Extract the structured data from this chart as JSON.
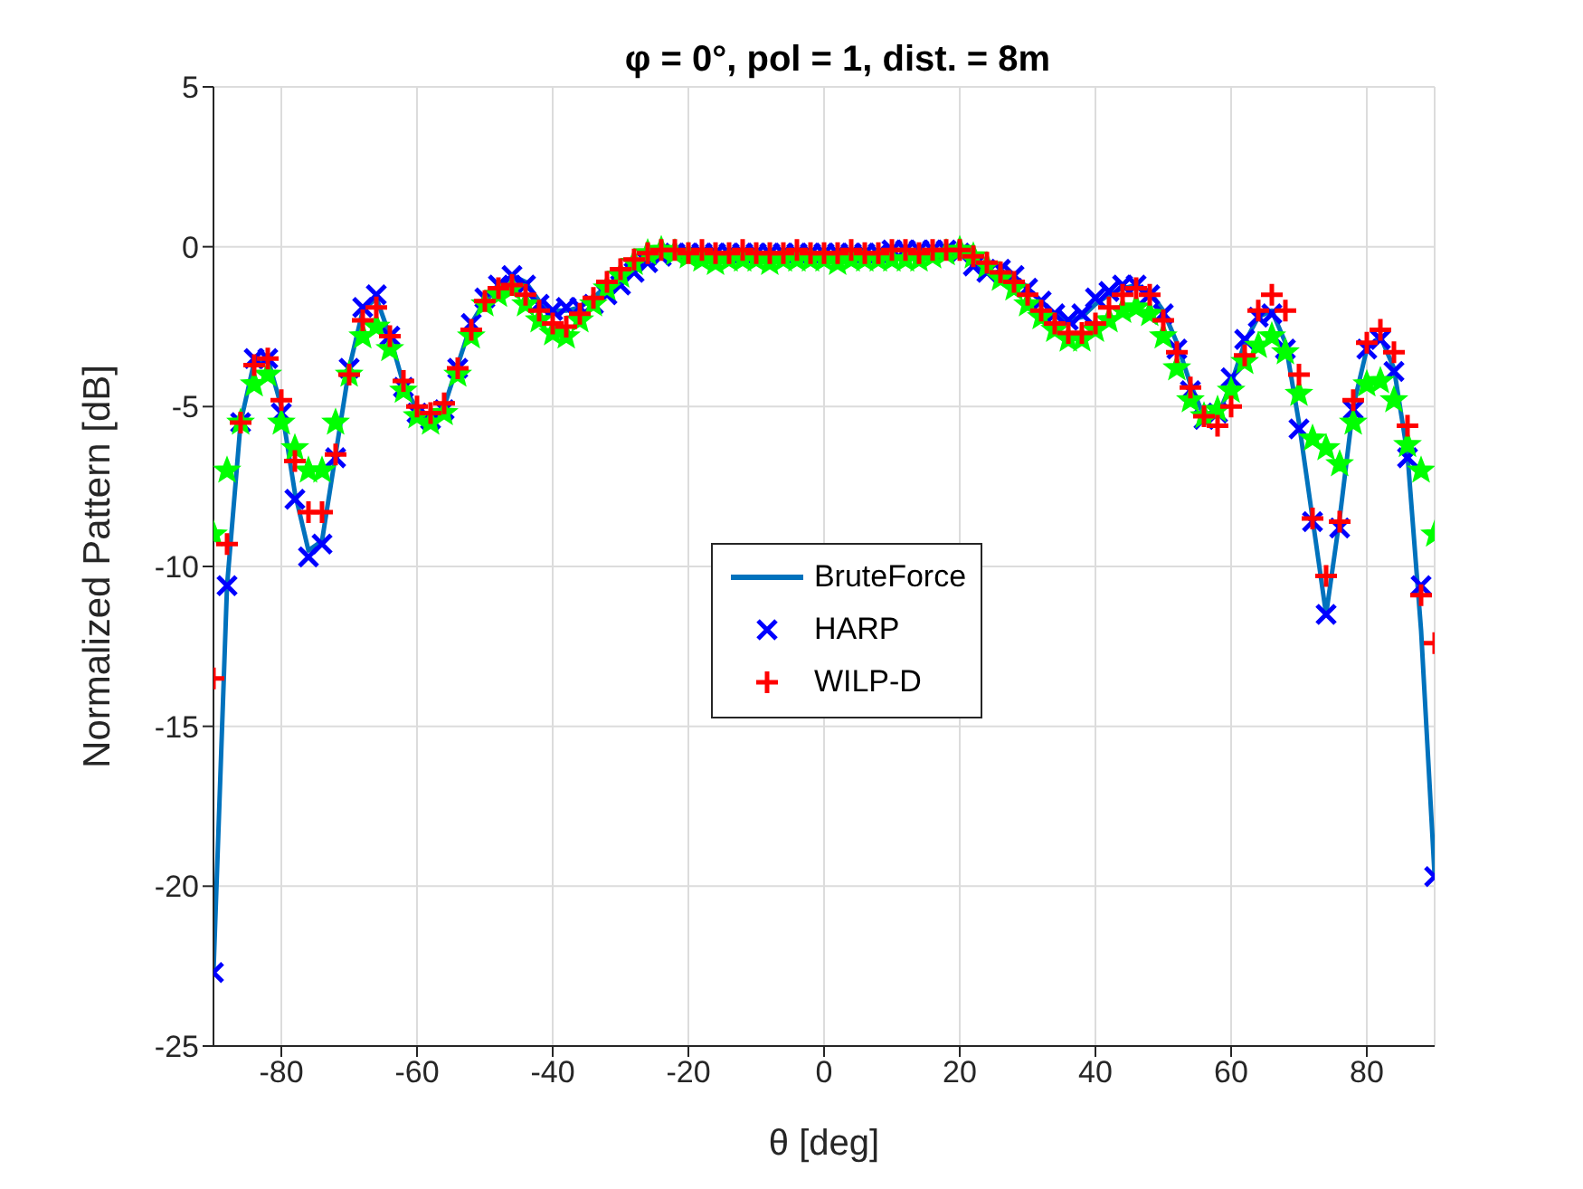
{
  "chart_data": {
    "type": "scatter",
    "title": "φ = 0°, pol = 1, dist. = 8m",
    "xlabel": "θ [deg]",
    "ylabel": "Normalized Pattern [dB]",
    "x": [
      -90,
      -88,
      -86,
      -84,
      -82,
      -80,
      -78,
      -76,
      -74,
      -72,
      -70,
      -68,
      -66,
      -64,
      -62,
      -60,
      -58,
      -56,
      -54,
      -52,
      -50,
      -48,
      -46,
      -44,
      -42,
      -40,
      -38,
      -36,
      -34,
      -32,
      -30,
      -28,
      -26,
      -24,
      -22,
      -20,
      -18,
      -16,
      -14,
      -12,
      -10,
      -8,
      -6,
      -4,
      -2,
      0,
      2,
      4,
      6,
      8,
      10,
      12,
      14,
      16,
      18,
      20,
      22,
      24,
      26,
      28,
      30,
      32,
      34,
      36,
      38,
      40,
      42,
      44,
      46,
      48,
      50,
      52,
      54,
      56,
      58,
      60,
      62,
      64,
      66,
      68,
      70,
      72,
      74,
      76,
      78,
      80,
      82,
      84,
      86,
      88,
      90
    ],
    "series": [
      {
        "name": "BruteForce",
        "type": "line",
        "color": "#0072bd",
        "marker": "none",
        "values": [
          -22.7,
          -10.6,
          -5.5,
          -3.6,
          -3.5,
          -5.0,
          -7.7,
          -9.5,
          -9.2,
          -6.5,
          -3.8,
          -2.0,
          -1.6,
          -2.8,
          -4.3,
          -5.1,
          -5.4,
          -5.0,
          -3.7,
          -2.4,
          -1.7,
          -1.3,
          -0.9,
          -1.1,
          -1.7,
          -2.0,
          -2.0,
          -1.9,
          -1.6,
          -1.2,
          -0.9,
          -0.6,
          -0.4,
          -0.3,
          -0.2,
          -0.2,
          -0.2,
          -0.2,
          -0.2,
          -0.2,
          -0.2,
          -0.2,
          -0.2,
          -0.2,
          -0.2,
          -0.2,
          -0.2,
          -0.2,
          -0.2,
          -0.2,
          -0.1,
          -0.1,
          -0.1,
          -0.1,
          -0.1,
          -0.2,
          -0.5,
          -0.8,
          -0.8,
          -1.0,
          -1.3,
          -1.7,
          -2.1,
          -2.3,
          -2.2,
          -1.8,
          -1.5,
          -1.3,
          -1.2,
          -1.4,
          -2.0,
          -3.0,
          -4.3,
          -5.3,
          -5.3,
          -4.3,
          -3.0,
          -2.2,
          -2.0,
          -3.0,
          -5.5,
          -8.5,
          -11.5,
          -8.5,
          -5.0,
          -3.2,
          -2.8,
          -3.8,
          -6.5,
          -12.0,
          -19.7
        ]
      },
      {
        "name": "HARP",
        "color": "#0000ff",
        "marker": "cross",
        "values": [
          -22.7,
          -10.6,
          -5.5,
          -3.5,
          -3.5,
          -5.2,
          -7.9,
          -9.7,
          -9.3,
          -6.6,
          -3.8,
          -1.9,
          -1.5,
          -2.8,
          -4.4,
          -5.2,
          -5.4,
          -5.1,
          -3.8,
          -2.4,
          -1.6,
          -1.2,
          -0.9,
          -1.2,
          -1.8,
          -2.0,
          -1.9,
          -1.9,
          -1.8,
          -1.5,
          -1.2,
          -0.8,
          -0.5,
          -0.3,
          -0.2,
          -0.2,
          -0.2,
          -0.2,
          -0.2,
          -0.2,
          -0.2,
          -0.2,
          -0.2,
          -0.2,
          -0.2,
          -0.2,
          -0.2,
          -0.2,
          -0.2,
          -0.2,
          -0.1,
          -0.1,
          -0.1,
          -0.1,
          -0.1,
          -0.2,
          -0.6,
          -0.8,
          -0.7,
          -0.9,
          -1.3,
          -1.7,
          -2.1,
          -2.3,
          -2.1,
          -1.6,
          -1.4,
          -1.2,
          -1.2,
          -1.5,
          -2.1,
          -3.2,
          -4.5,
          -5.4,
          -5.2,
          -4.1,
          -2.9,
          -2.2,
          -2.1,
          -3.2,
          -5.7,
          -8.6,
          -11.5,
          -8.8,
          -5.1,
          -3.2,
          -2.9,
          -3.9,
          -6.6,
          -10.6,
          -19.7
        ]
      },
      {
        "color": "#00ff00",
        "marker": "star",
        "values": [
          -9.0,
          -7.0,
          -5.5,
          -4.3,
          -4.0,
          -5.5,
          -6.3,
          -7.0,
          -7.0,
          -5.5,
          -4.0,
          -2.8,
          -2.5,
          -3.2,
          -4.5,
          -5.3,
          -5.5,
          -5.2,
          -4.0,
          -2.8,
          -1.8,
          -1.5,
          -1.3,
          -1.8,
          -2.3,
          -2.7,
          -2.8,
          -2.3,
          -1.8,
          -1.3,
          -0.9,
          -0.5,
          -0.2,
          -0.1,
          -0.2,
          -0.3,
          -0.4,
          -0.5,
          -0.4,
          -0.4,
          -0.4,
          -0.5,
          -0.4,
          -0.4,
          -0.4,
          -0.4,
          -0.5,
          -0.4,
          -0.4,
          -0.4,
          -0.4,
          -0.4,
          -0.4,
          -0.3,
          -0.2,
          -0.1,
          -0.3,
          -0.6,
          -1.0,
          -1.3,
          -1.8,
          -2.2,
          -2.6,
          -2.9,
          -2.9,
          -2.6,
          -2.3,
          -2.0,
          -1.9,
          -2.1,
          -2.8,
          -3.8,
          -4.8,
          -5.3,
          -5.1,
          -4.5,
          -3.6,
          -3.1,
          -2.8,
          -3.3,
          -4.6,
          -6.0,
          -6.3,
          -6.8,
          -5.5,
          -4.3,
          -4.2,
          -4.8,
          -6.2,
          -7.0,
          -9.0
        ]
      },
      {
        "name": "WILP-D",
        "color": "#ff0000",
        "marker": "plus",
        "values": [
          -13.5,
          -9.3,
          -5.5,
          -3.7,
          -3.5,
          -4.8,
          -6.7,
          -8.3,
          -8.3,
          -6.5,
          -4.0,
          -2.3,
          -1.9,
          -2.8,
          -4.2,
          -5.0,
          -5.2,
          -4.9,
          -3.8,
          -2.6,
          -1.7,
          -1.3,
          -1.2,
          -1.5,
          -2.0,
          -2.4,
          -2.5,
          -2.1,
          -1.6,
          -1.1,
          -0.7,
          -0.4,
          -0.2,
          -0.1,
          -0.1,
          -0.2,
          -0.1,
          -0.2,
          -0.2,
          -0.1,
          -0.2,
          -0.2,
          -0.2,
          -0.1,
          -0.2,
          -0.2,
          -0.2,
          -0.1,
          -0.2,
          -0.2,
          -0.1,
          -0.1,
          -0.2,
          -0.1,
          -0.1,
          -0.1,
          -0.3,
          -0.5,
          -0.8,
          -1.1,
          -1.5,
          -2.0,
          -2.4,
          -2.7,
          -2.7,
          -2.4,
          -1.9,
          -1.5,
          -1.3,
          -1.5,
          -2.3,
          -3.3,
          -4.4,
          -5.3,
          -5.6,
          -5.0,
          -3.4,
          -2.0,
          -1.5,
          -2.0,
          -4.0,
          -8.5,
          -10.3,
          -8.6,
          -4.8,
          -3.0,
          -2.6,
          -3.3,
          -5.6,
          -10.9,
          -12.4
        ]
      }
    ],
    "xlim": [
      -90,
      90
    ],
    "xticks": [
      -80,
      -60,
      -40,
      -20,
      0,
      20,
      40,
      60,
      80
    ],
    "ylim": [
      -25,
      5
    ],
    "yticks": [
      -25,
      -20,
      -15,
      -10,
      -5,
      0,
      5
    ],
    "grid": true,
    "legend": "center"
  }
}
